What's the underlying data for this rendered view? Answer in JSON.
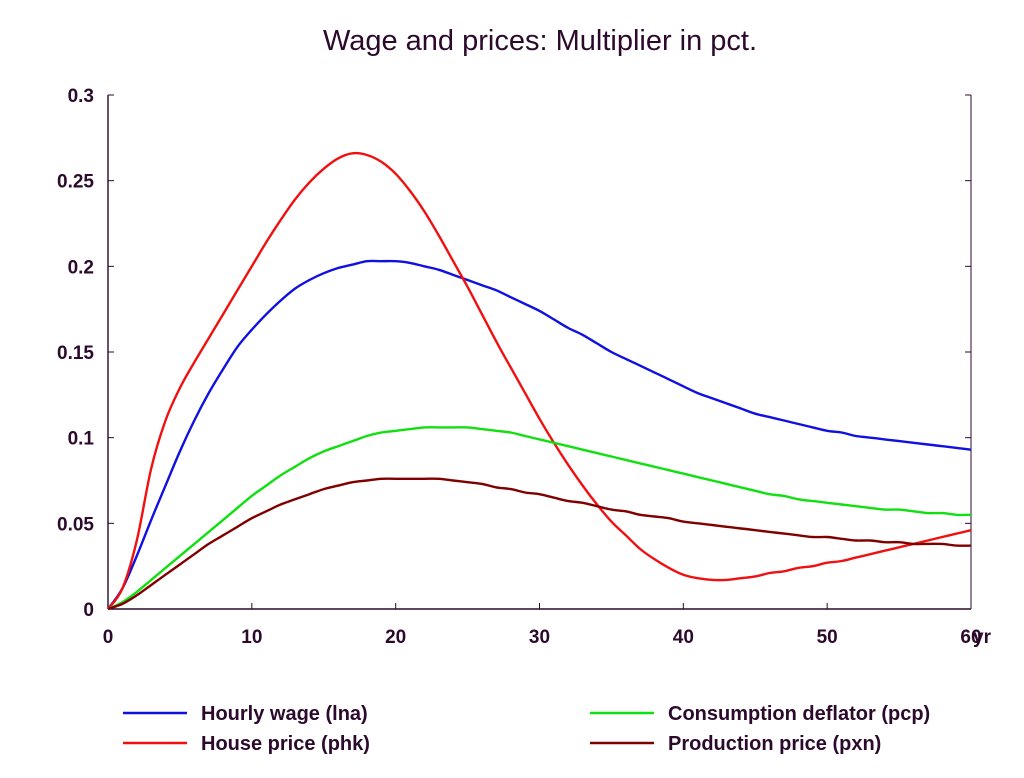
{
  "chart_data": {
    "type": "line",
    "title": "Wage and prices: Multiplier in pct.",
    "xlabel": "",
    "ylabel": "",
    "x_unit_label": "yr",
    "xlim": [
      0,
      60
    ],
    "ylim": [
      0,
      0.3
    ],
    "x_ticks": [
      0,
      10,
      20,
      30,
      40,
      50,
      60
    ],
    "x_tick_labels": [
      "0",
      "10",
      "20",
      "30",
      "40",
      "50",
      "60"
    ],
    "y_ticks": [
      0,
      0.05,
      0.1,
      0.15,
      0.2,
      0.25,
      0.3
    ],
    "y_tick_labels": [
      "0",
      "0.05",
      "0.1",
      "0.15",
      "0.2",
      "0.25",
      "0.3"
    ],
    "grid": false,
    "legend_position": "bottom",
    "x": [
      0,
      1,
      2,
      3,
      4,
      5,
      6,
      7,
      8,
      9,
      10,
      11,
      12,
      13,
      14,
      15,
      16,
      17,
      18,
      19,
      20,
      21,
      22,
      23,
      24,
      25,
      26,
      27,
      28,
      29,
      30,
      31,
      32,
      33,
      34,
      35,
      36,
      37,
      38,
      39,
      40,
      41,
      42,
      43,
      44,
      45,
      46,
      47,
      48,
      49,
      50,
      51,
      52,
      53,
      54,
      55,
      56,
      57,
      58,
      59,
      60
    ],
    "series": [
      {
        "name": "Hourly wage (lna)",
        "color": "#1010e0",
        "values": [
          0,
          0.012,
          0.031,
          0.052,
          0.072,
          0.092,
          0.11,
          0.126,
          0.14,
          0.153,
          0.163,
          0.172,
          0.18,
          0.187,
          0.192,
          0.196,
          0.199,
          0.201,
          0.203,
          0.203,
          0.203,
          0.202,
          0.2,
          0.198,
          0.195,
          0.192,
          0.189,
          0.186,
          0.182,
          0.178,
          0.174,
          0.169,
          0.164,
          0.16,
          0.155,
          0.15,
          0.146,
          0.142,
          0.138,
          0.134,
          0.13,
          0.126,
          0.123,
          0.12,
          0.117,
          0.114,
          0.112,
          0.11,
          0.108,
          0.106,
          0.104,
          0.103,
          0.101,
          0.1,
          0.099,
          0.098,
          0.097,
          0.096,
          0.095,
          0.094,
          0.093
        ]
      },
      {
        "name": "House price (phk)",
        "color": "#f01010",
        "values": [
          0,
          0.012,
          0.04,
          0.082,
          0.11,
          0.129,
          0.144,
          0.158,
          0.172,
          0.186,
          0.2,
          0.214,
          0.227,
          0.239,
          0.249,
          0.257,
          0.263,
          0.266,
          0.265,
          0.261,
          0.254,
          0.244,
          0.232,
          0.218,
          0.203,
          0.188,
          0.172,
          0.156,
          0.141,
          0.126,
          0.111,
          0.097,
          0.084,
          0.072,
          0.061,
          0.051,
          0.043,
          0.035,
          0.029,
          0.024,
          0.02,
          0.018,
          0.017,
          0.017,
          0.018,
          0.019,
          0.021,
          0.022,
          0.024,
          0.025,
          0.027,
          0.028,
          0.03,
          0.032,
          0.034,
          0.036,
          0.038,
          0.04,
          0.042,
          0.044,
          0.046
        ]
      },
      {
        "name": "Consumption deflator (pcp)",
        "color": "#10e010",
        "values": [
          0,
          0.004,
          0.01,
          0.017,
          0.024,
          0.031,
          0.038,
          0.045,
          0.052,
          0.059,
          0.066,
          0.072,
          0.078,
          0.083,
          0.088,
          0.092,
          0.095,
          0.098,
          0.101,
          0.103,
          0.104,
          0.105,
          0.106,
          0.106,
          0.106,
          0.106,
          0.105,
          0.104,
          0.103,
          0.101,
          0.099,
          0.097,
          0.095,
          0.093,
          0.091,
          0.089,
          0.087,
          0.085,
          0.083,
          0.081,
          0.079,
          0.077,
          0.075,
          0.073,
          0.071,
          0.069,
          0.067,
          0.066,
          0.064,
          0.063,
          0.062,
          0.061,
          0.06,
          0.059,
          0.058,
          0.058,
          0.057,
          0.056,
          0.056,
          0.055,
          0.055
        ]
      },
      {
        "name": "Production price (pxn)",
        "color": "#800000",
        "values": [
          0,
          0.003,
          0.008,
          0.014,
          0.02,
          0.026,
          0.032,
          0.038,
          0.043,
          0.048,
          0.053,
          0.057,
          0.061,
          0.064,
          0.067,
          0.07,
          0.072,
          0.074,
          0.075,
          0.076,
          0.076,
          0.076,
          0.076,
          0.076,
          0.075,
          0.074,
          0.073,
          0.071,
          0.07,
          0.068,
          0.067,
          0.065,
          0.063,
          0.062,
          0.06,
          0.058,
          0.057,
          0.055,
          0.054,
          0.053,
          0.051,
          0.05,
          0.049,
          0.048,
          0.047,
          0.046,
          0.045,
          0.044,
          0.043,
          0.042,
          0.042,
          0.041,
          0.04,
          0.04,
          0.039,
          0.039,
          0.038,
          0.038,
          0.038,
          0.037,
          0.037
        ]
      }
    ]
  }
}
